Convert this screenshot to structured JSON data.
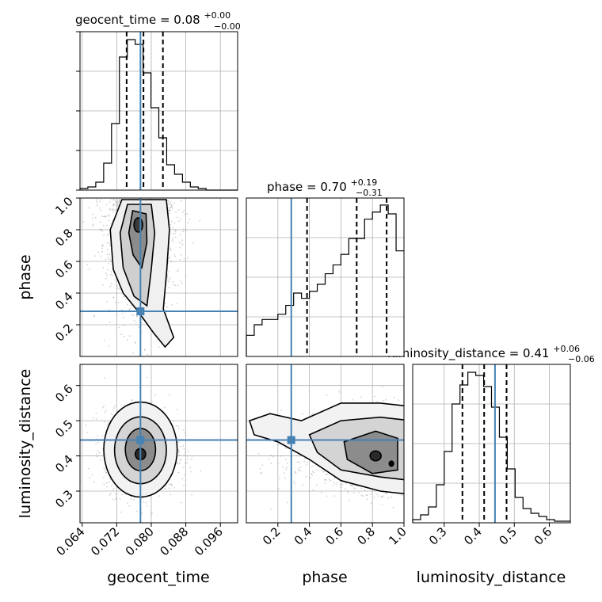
{
  "chart_data": {
    "type": "corner",
    "parameters": [
      "geocent_time",
      "phase",
      "luminosity_distance"
    ],
    "truths": {
      "geocent_time": 0.0775,
      "phase": 0.285,
      "luminosity_distance": 0.445
    },
    "truth_color": "#4682b4",
    "grid": true,
    "marginals": [
      {
        "parameter": "geocent_time",
        "title_prefix": "geocent_time = 0.08",
        "title_sup": "+0.00",
        "title_sub": "−0.00",
        "xlim": [
          0.0635,
          0.1
        ],
        "ticks": [
          "0.064",
          "0.072",
          "0.080",
          "0.088",
          "0.096"
        ],
        "tick_values": [
          0.064,
          0.072,
          0.08,
          0.088,
          0.096
        ],
        "quantiles": [
          0.0743,
          0.0782,
          0.0827
        ],
        "hist_edges": [
          0.0635,
          0.06532,
          0.06715,
          0.06898,
          0.0708,
          0.07262,
          0.07445,
          0.07628,
          0.0781,
          0.07993,
          0.08175,
          0.08357,
          0.0854,
          0.08723,
          0.08905,
          0.09088,
          0.0927,
          0.09453,
          0.09635,
          0.09818,
          0.1
        ],
        "hist_counts": [
          1,
          2,
          5,
          17,
          42,
          84,
          95,
          92,
          74,
          52,
          33,
          16,
          10,
          5,
          2,
          1,
          0,
          0,
          0,
          0
        ],
        "hist_max": 100
      },
      {
        "parameter": "phase",
        "title_prefix": "phase = 0.70",
        "title_sup": "+0.19",
        "title_sub": "−0.31",
        "xlim": [
          0.0,
          1.0
        ],
        "ticks": [
          "0.2",
          "0.4",
          "0.6",
          "0.8",
          "1.0"
        ],
        "tick_values": [
          0.2,
          0.4,
          0.6,
          0.8,
          1.0
        ],
        "quantiles": [
          0.385,
          0.7,
          0.89
        ],
        "hist_edges": [
          0.0,
          0.05,
          0.1,
          0.15,
          0.2,
          0.25,
          0.3,
          0.35,
          0.4,
          0.45,
          0.5,
          0.55,
          0.6,
          0.65,
          0.7,
          0.75,
          0.8,
          0.85,
          0.9,
          0.95,
          1.0
        ],
        "hist_counts": [
          12,
          18,
          21,
          21,
          24,
          29,
          36,
          33,
          37,
          41,
          47,
          52,
          58,
          67,
          67,
          78,
          82,
          86,
          81,
          60
        ],
        "hist_max": 90
      },
      {
        "parameter": "luminosity_distance",
        "title_prefix": "luminosity_distance = 0.41",
        "title_sup": "+0.06",
        "title_sub": "−0.06",
        "xlim": [
          0.21,
          0.66
        ],
        "ticks": [
          "0.3",
          "0.4",
          "0.5",
          "0.6"
        ],
        "tick_values": [
          0.3,
          0.4,
          0.5,
          0.6
        ],
        "quantiles": [
          0.352,
          0.414,
          0.478
        ],
        "hist_edges": [
          0.21,
          0.2325,
          0.255,
          0.2775,
          0.3,
          0.3225,
          0.345,
          0.3675,
          0.39,
          0.4125,
          0.435,
          0.4575,
          0.48,
          0.5025,
          0.525,
          0.5475,
          0.57,
          0.5925,
          0.615,
          0.6375,
          0.66
        ],
        "hist_counts": [
          2,
          5,
          10,
          24,
          45,
          75,
          87,
          95,
          93,
          86,
          73,
          54,
          34,
          16,
          9,
          6,
          4,
          2,
          1,
          1
        ],
        "hist_max": 100
      }
    ],
    "axis_labels": {
      "x": [
        "geocent_time",
        "phase",
        "luminosity_distance"
      ],
      "y": [
        "phase",
        "luminosity_distance"
      ]
    },
    "y_ticks": {
      "phase": {
        "labels": [
          "0.2",
          "0.4",
          "0.6",
          "0.8",
          "1.0"
        ],
        "values": [
          0.2,
          0.4,
          0.6,
          0.8,
          1.0
        ]
      },
      "luminosity_distance": {
        "labels": [
          "0.3",
          "0.4",
          "0.5",
          "0.6"
        ],
        "values": [
          0.3,
          0.4,
          0.5,
          0.6
        ]
      }
    },
    "pairs": [
      {
        "x": "geocent_time",
        "y": "phase",
        "mode": [
          0.0772,
          0.82
        ],
        "xlim": [
          0.0635,
          0.1
        ],
        "ylim": [
          0.0,
          1.0
        ]
      },
      {
        "x": "geocent_time",
        "y": "luminosity_distance",
        "mode": [
          0.0772,
          0.415
        ],
        "xlim": [
          0.0635,
          0.1
        ],
        "ylim": [
          0.21,
          0.66
        ]
      },
      {
        "x": "phase",
        "y": "luminosity_distance",
        "mode": [
          0.82,
          0.4
        ],
        "xlim": [
          0.0,
          1.0
        ],
        "ylim": [
          0.21,
          0.66
        ]
      }
    ]
  }
}
